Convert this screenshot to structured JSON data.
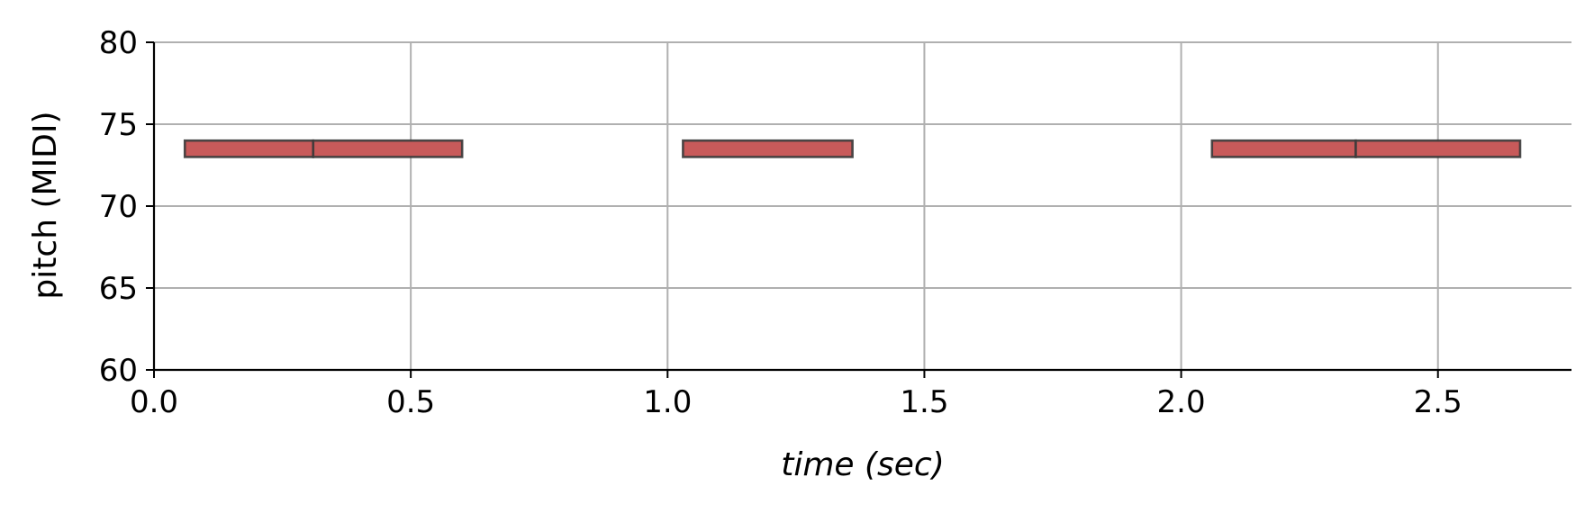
{
  "chart_data": {
    "type": "bar",
    "orientation": "horizontal-note-segments",
    "title": "",
    "xlabel": "time (sec)",
    "ylabel": "pitch (MIDI)",
    "xlim": [
      0.0,
      2.76
    ],
    "ylim": [
      60,
      80
    ],
    "xticks": [
      0.0,
      0.5,
      1.0,
      1.5,
      2.0,
      2.5
    ],
    "xtick_labels": [
      "0.0",
      "0.5",
      "1.0",
      "1.5",
      "2.0",
      "2.5"
    ],
    "yticks": [
      60,
      65,
      70,
      75,
      80
    ],
    "ytick_labels": [
      "60",
      "65",
      "70",
      "75",
      "80"
    ],
    "grid": true,
    "legend": false,
    "note_height": 1,
    "colors": {
      "fill": "#c85a5a",
      "edge": "#3a3a3a",
      "grid": "#b0b0b0",
      "axis": "#000000"
    },
    "notes": [
      {
        "start": 0.06,
        "end": 0.31,
        "pitch": 73.5
      },
      {
        "start": 0.31,
        "end": 0.6,
        "pitch": 73.5
      },
      {
        "start": 1.03,
        "end": 1.36,
        "pitch": 73.5
      },
      {
        "start": 2.06,
        "end": 2.34,
        "pitch": 73.5
      },
      {
        "start": 2.34,
        "end": 2.66,
        "pitch": 73.5
      }
    ]
  }
}
